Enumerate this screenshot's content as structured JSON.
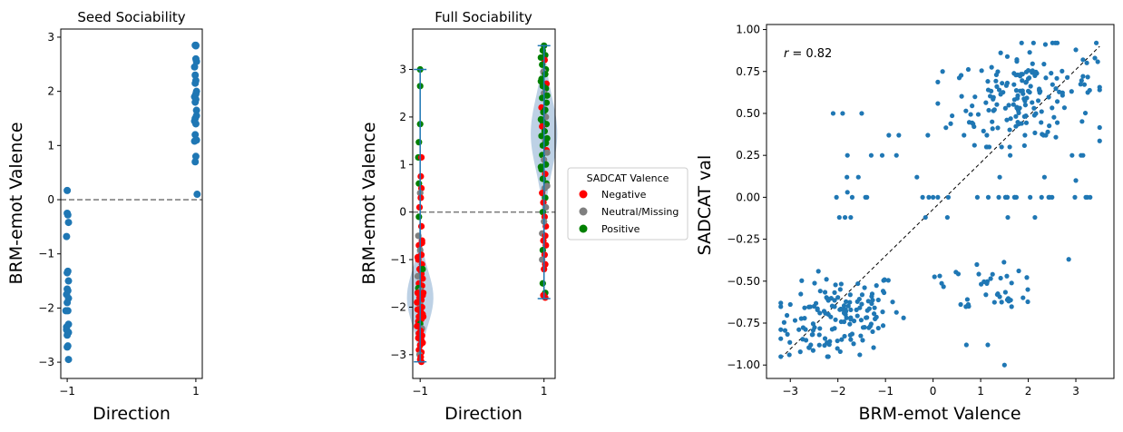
{
  "colors": {
    "point": "#1f77b4",
    "negative": "#ff0000",
    "neutral": "#7f7f7f",
    "positive": "#008000",
    "violin_fill": "#a7c1dc",
    "violin_line": "#1f77b4",
    "zero_line": "#808080",
    "fit_line": "#000000"
  },
  "chart_data": [
    {
      "type": "scatter",
      "title": "Seed Sociability",
      "xlabel": "Direction",
      "ylabel": "BRM-emot Valence",
      "xlim": [
        -1.1,
        1.1
      ],
      "ylim": [
        -3.3,
        3.15
      ],
      "xticks": [
        -1,
        1
      ],
      "xtick_labels": [
        "−1",
        "1"
      ],
      "yticks": [
        -3,
        -2,
        -1,
        0,
        1,
        2,
        3
      ],
      "ytick_labels": [
        "−3",
        "−2",
        "−1",
        "0",
        "1",
        "2",
        "3"
      ],
      "reference_line_y": 0,
      "x": [
        -1.0,
        -1.0,
        -0.99,
        -0.98,
        -1.01,
        -0.99,
        -1.0,
        -0.98,
        -1.0,
        -0.99,
        -1.01,
        -0.98,
        -1.0,
        -0.99,
        -1.02,
        -0.98,
        -1.01,
        -0.99,
        -0.98,
        -1.0,
        -0.99,
        -1.0,
        -0.98,
        -1.01,
        1.0,
        1.0,
        0.99,
        1.0,
        0.98,
        1.01,
        0.99,
        1.0,
        0.99,
        1.01,
        1.0,
        0.98,
        1.0,
        0.99,
        1.01,
        0.99,
        0.98,
        1.0,
        0.99,
        1.01,
        1.0,
        0.98,
        1.0,
        0.99,
        1.01,
        1.02
      ],
      "y": [
        0.17,
        -0.25,
        -0.28,
        -0.42,
        -0.68,
        -1.32,
        -1.35,
        -1.5,
        -1.65,
        -1.68,
        -1.75,
        -1.82,
        -1.9,
        -2.05,
        -2.05,
        -2.3,
        -2.35,
        -2.45,
        -2.45,
        -2.5,
        -2.7,
        -2.72,
        -2.95,
        -2.4,
        2.85,
        2.84,
        2.85,
        2.6,
        2.45,
        2.55,
        2.3,
        2.2,
        2.15,
        2.0,
        1.95,
        1.9,
        1.85,
        1.8,
        1.65,
        1.5,
        1.45,
        1.4,
        1.2,
        1.1,
        1.1,
        1.08,
        0.8,
        0.7,
        1.55,
        0.1
      ]
    },
    {
      "type": "violin_scatter",
      "title": "Full Sociability",
      "xlabel": "Direction",
      "ylabel": "BRM-emot Valence",
      "xlim": [
        -1.12,
        1.18
      ],
      "ylim": [
        -3.5,
        3.85
      ],
      "xticks": [
        -1,
        1
      ],
      "xtick_labels": [
        "−1",
        "1"
      ],
      "yticks": [
        -3,
        -2,
        -1,
        0,
        1,
        2,
        3
      ],
      "ytick_labels": [
        "−3",
        "−2",
        "−1",
        "0",
        "1",
        "2",
        "3"
      ],
      "reference_line_y": 0,
      "legend": {
        "title": "SADCAT Valence",
        "placement": "outside-right",
        "entries": [
          "Negative",
          "Neutral/Missing",
          "Positive"
        ]
      },
      "violins": [
        {
          "x": -1,
          "min": -3.15,
          "max": 3.0,
          "kde_center": -1.8,
          "kde_spread": 0.55
        },
        {
          "x": 1,
          "min": -1.82,
          "max": 3.5,
          "kde_center": 1.65,
          "kde_spread": 0.75
        }
      ],
      "groups": [
        {
          "x": -1,
          "category": [
            "Positive",
            "Positive",
            "Positive",
            "Positive",
            "Positive",
            "Negative",
            "Negative",
            "Positive",
            "Negative",
            "Neutral/Missing",
            "Negative",
            "Negative",
            "Positive",
            "Negative",
            "Neutral/Missing",
            "Negative",
            "Negative",
            "Neutral/Missing",
            "Negative",
            "Negative",
            "Negative",
            "Negative",
            "Negative",
            "Neutral/Missing",
            "Negative",
            "Negative",
            "Negative",
            "Positive",
            "Neutral/Missing",
            "Negative",
            "Negative",
            "Negative",
            "Negative",
            "Negative",
            "Neutral/Missing",
            "Negative",
            "Negative",
            "Negative",
            "Negative",
            "Negative",
            "Negative",
            "Negative",
            "Positive",
            "Negative",
            "Neutral/Missing",
            "Negative",
            "Negative",
            "Negative",
            "Negative",
            "Negative",
            "Negative",
            "Negative",
            "Negative",
            "Neutral/Missing",
            "Negative",
            "Negative",
            "Negative",
            "Negative",
            "Negative",
            "Negative",
            "Negative",
            "Positive",
            "Negative",
            "Negative",
            "Negative"
          ],
          "y": [
            3.0,
            2.65,
            1.85,
            1.47,
            1.15,
            1.15,
            0.75,
            0.6,
            0.5,
            0.4,
            0.3,
            0.1,
            -0.1,
            -0.3,
            -0.5,
            -0.6,
            -0.7,
            -0.8,
            -0.9,
            -1.0,
            -1.1,
            -1.2,
            -1.3,
            -1.35,
            -1.4,
            -1.5,
            -1.55,
            -1.6,
            -1.65,
            -1.7,
            -1.75,
            -1.8,
            -1.85,
            -1.9,
            -1.95,
            -2.0,
            -2.05,
            -2.1,
            -2.15,
            -2.2,
            -2.25,
            -2.3,
            -2.35,
            -2.4,
            -2.45,
            -2.5,
            -2.55,
            -2.6,
            -2.65,
            -2.7,
            -2.8,
            -2.9,
            -2.95,
            -3.0,
            -3.05,
            -3.1,
            -3.15,
            -1.7,
            -1.9,
            -2.2,
            -2.4,
            -1.2,
            -0.95,
            -0.65,
            -2.75
          ],
          "jitter": [
            0.0,
            0.0,
            0.0,
            -0.02,
            -0.03,
            0.02,
            0.01,
            -0.02,
            0.02,
            0.0,
            0.01,
            -0.01,
            -0.02,
            0.02,
            -0.03,
            0.03,
            -0.02,
            0.0,
            0.02,
            -0.03,
            0.03,
            -0.01,
            0.02,
            -0.04,
            0.04,
            -0.02,
            0.03,
            -0.03,
            0.01,
            -0.04,
            0.04,
            -0.01,
            0.02,
            -0.03,
            0.0,
            0.03,
            -0.04,
            0.01,
            0.04,
            -0.02,
            0.02,
            -0.03,
            0.0,
            -0.04,
            0.03,
            0.01,
            -0.02,
            0.03,
            -0.03,
            0.02,
            0.0,
            -0.02,
            0.02,
            -0.01,
            0.01,
            0.0,
            0.02,
            0.05,
            -0.05,
            0.05,
            -0.05,
            0.04,
            -0.04,
            0.03,
            0.04
          ]
        },
        {
          "x": 1,
          "category": [
            "Positive",
            "Positive",
            "Positive",
            "Negative",
            "Positive",
            "Positive",
            "Neutral/Missing",
            "Positive",
            "Positive",
            "Negative",
            "Positive",
            "Positive",
            "Neutral/Missing",
            "Positive",
            "Positive",
            "Negative",
            "Positive",
            "Positive",
            "Neutral/Missing",
            "Positive",
            "Positive",
            "Negative",
            "Positive",
            "Positive",
            "Neutral/Missing",
            "Positive",
            "Positive",
            "Negative",
            "Positive",
            "Neutral/Missing",
            "Positive",
            "Positive",
            "Negative",
            "Positive",
            "Positive",
            "Neutral/Missing",
            "Negative",
            "Positive",
            "Negative",
            "Neutral/Missing",
            "Positive",
            "Negative",
            "Negative",
            "Neutral/Missing",
            "Negative",
            "Negative",
            "Negative",
            "Positive",
            "Negative",
            "Neutral/Missing",
            "Negative",
            "Negative",
            "Positive",
            "Positive",
            "Negative",
            "Negative",
            "Neutral/Missing",
            "Positive",
            "Positive",
            "Positive",
            "Positive",
            "Neutral/Missing",
            "Positive",
            "Positive",
            "Neutral/Missing"
          ],
          "y": [
            3.5,
            3.4,
            3.3,
            3.2,
            3.1,
            3.0,
            2.95,
            2.9,
            2.8,
            2.7,
            2.65,
            2.6,
            2.5,
            2.4,
            2.3,
            2.2,
            2.15,
            2.1,
            2.0,
            1.9,
            1.85,
            1.8,
            1.7,
            1.6,
            1.5,
            1.45,
            1.4,
            1.3,
            1.2,
            1.1,
            1.0,
            0.9,
            0.8,
            0.7,
            0.6,
            0.5,
            0.4,
            0.3,
            0.2,
            0.1,
            0.0,
            -0.1,
            -0.3,
            -0.45,
            -0.5,
            -0.6,
            -0.7,
            -0.8,
            -0.9,
            -1.0,
            -1.1,
            -1.2,
            -1.5,
            -1.7,
            -1.75,
            -1.8,
            -0.2,
            2.45,
            1.95,
            1.55,
            2.75,
            1.25,
            0.95,
            3.25,
            0.55
          ],
          "jitter": [
            0.0,
            -0.02,
            0.02,
            0.01,
            -0.03,
            0.03,
            -0.01,
            0.02,
            -0.04,
            0.04,
            -0.02,
            0.03,
            0.0,
            -0.03,
            0.04,
            -0.04,
            0.02,
            -0.01,
            0.03,
            -0.02,
            0.04,
            -0.03,
            0.01,
            -0.04,
            0.02,
            0.03,
            -0.02,
            0.04,
            -0.03,
            0.0,
            0.03,
            -0.04,
            0.02,
            -0.02,
            0.04,
            0.01,
            -0.03,
            0.02,
            -0.01,
            0.03,
            -0.02,
            0.01,
            0.03,
            -0.03,
            0.02,
            -0.01,
            0.03,
            -0.02,
            0.01,
            -0.03,
            0.02,
            0.0,
            -0.02,
            0.02,
            -0.01,
            0.02,
            0.0,
            0.05,
            -0.05,
            0.05,
            -0.05,
            0.05,
            -0.05,
            -0.05,
            0.05
          ]
        }
      ]
    },
    {
      "type": "scatter",
      "title": "",
      "xlabel": "BRM-emot Valence",
      "ylabel": "SADCAT val",
      "xlim": [
        -3.5,
        3.8
      ],
      "ylim": [
        -1.08,
        1.03
      ],
      "xticks": [
        -3,
        -2,
        -1,
        0,
        1,
        2,
        3
      ],
      "xtick_labels": [
        "−3",
        "−2",
        "−1",
        "0",
        "1",
        "2",
        "3"
      ],
      "yticks": [
        -1.0,
        -0.75,
        -0.5,
        -0.25,
        0.0,
        0.25,
        0.5,
        0.75,
        1.0
      ],
      "ytick_labels": [
        "−1.00",
        "−0.75",
        "−0.50",
        "−0.25",
        "0.00",
        "0.25",
        "0.50",
        "0.75",
        "1.00"
      ],
      "annotation": "r = 0.82",
      "annotation_label": "r",
      "annotation_value": "= 0.82",
      "fit_line": {
        "x": [
          -3.2,
          3.5
        ],
        "y": [
          -0.96,
          0.9
        ]
      }
    }
  ]
}
